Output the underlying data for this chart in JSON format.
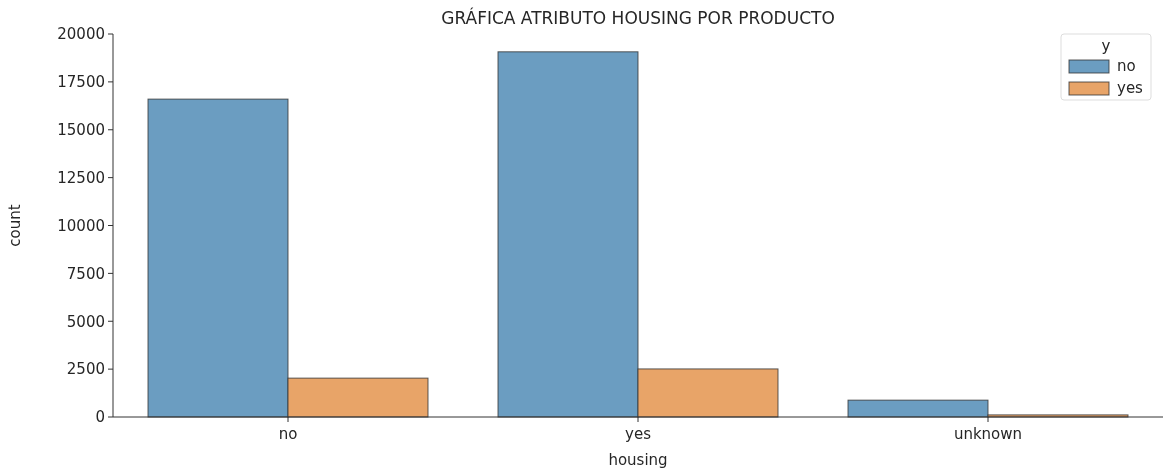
{
  "chart_data": {
    "type": "bar",
    "title": "GRÁFICA ATRIBUTO HOUSING POR PRODUCTO",
    "xlabel": "housing",
    "ylabel": "count",
    "legend_title": "y",
    "legend": "top right",
    "categories": [
      "no",
      "yes",
      "unknown"
    ],
    "series": [
      {
        "name": "no",
        "color": "#6b9dc1",
        "values": [
          16600,
          19070,
          880
        ]
      },
      {
        "name": "yes",
        "color": "#e8a468",
        "values": [
          2030,
          2510,
          110
        ]
      }
    ],
    "ylim": [
      0,
      20000
    ],
    "yticks": [
      0,
      2500,
      5000,
      7500,
      10000,
      12500,
      15000,
      17500,
      20000
    ],
    "grid": false
  }
}
